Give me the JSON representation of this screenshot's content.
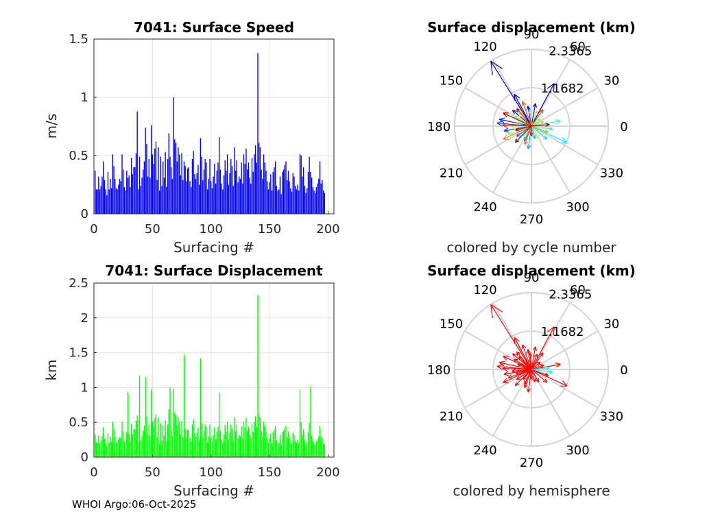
{
  "footer": "WHOI Argo:06-Oct-2025",
  "chart_data": [
    {
      "type": "bar",
      "title": "7041: Surface Speed",
      "xlabel": "Surfacing #",
      "ylabel": "m/s",
      "xlim": [
        0,
        205
      ],
      "ylim": [
        0,
        1.5
      ],
      "xticks": [
        "0",
        "50",
        "100",
        "150",
        "200"
      ],
      "yticks": [
        "0",
        "0.5",
        "1",
        "1.5"
      ],
      "color": "#0000ff",
      "values": [
        0.37,
        0.21,
        0.21,
        0.32,
        0.21,
        0.24,
        0.32,
        0.45,
        0.29,
        0.21,
        0.16,
        0.36,
        0.21,
        0.3,
        0.22,
        0.51,
        0.41,
        0.3,
        0.22,
        0.21,
        0.25,
        0.3,
        0.28,
        0.51,
        0.38,
        0.23,
        0.2,
        0.37,
        0.31,
        0.33,
        0.23,
        0.48,
        0.34,
        0.4,
        0.4,
        0.52,
        0.88,
        0.21,
        0.49,
        0.24,
        0.31,
        0.38,
        0.45,
        0.74,
        0.6,
        0.32,
        0.47,
        0.31,
        0.76,
        0.51,
        0.43,
        0.56,
        0.62,
        0.29,
        0.57,
        0.2,
        0.49,
        0.24,
        0.45,
        0.31,
        0.53,
        0.23,
        0.47,
        0.69,
        0.49,
        0.4,
        0.3,
        1.0,
        0.64,
        0.61,
        0.45,
        0.57,
        0.51,
        0.33,
        0.52,
        0.29,
        0.45,
        0.41,
        0.28,
        0.39,
        0.4,
        0.28,
        0.23,
        0.47,
        0.54,
        0.34,
        0.3,
        0.35,
        0.42,
        0.25,
        0.65,
        0.49,
        0.29,
        0.38,
        0.47,
        0.44,
        0.21,
        0.3,
        0.47,
        0.28,
        0.22,
        0.32,
        0.43,
        0.26,
        0.37,
        0.44,
        0.66,
        0.38,
        0.26,
        0.21,
        0.33,
        0.46,
        0.37,
        0.51,
        0.25,
        0.35,
        0.47,
        0.41,
        0.24,
        0.57,
        0.37,
        0.46,
        0.27,
        0.32,
        0.3,
        0.44,
        0.26,
        0.51,
        0.43,
        0.56,
        0.38,
        0.44,
        0.31,
        0.26,
        0.48,
        0.36,
        0.51,
        0.59,
        0.44,
        1.38,
        0.61,
        0.57,
        0.38,
        0.3,
        0.51,
        0.44,
        0.37,
        0.28,
        0.21,
        0.27,
        0.34,
        0.2,
        0.36,
        0.4,
        0.45,
        0.24,
        0.2,
        0.21,
        0.32,
        0.17,
        0.36,
        0.38,
        0.42,
        0.45,
        0.29,
        0.37,
        0.28,
        0.22,
        0.19,
        0.35,
        0.32,
        0.24,
        0.21,
        0.25,
        0.2,
        0.51,
        0.5,
        0.32,
        0.4,
        0.24,
        0.18,
        0.22,
        0.36,
        0.49,
        0.36,
        0.31,
        0.23,
        0.2,
        0.18,
        0.23,
        0.26,
        0.3,
        0.45,
        0.26,
        0.29,
        0.2,
        0.18
      ]
    },
    {
      "type": "bar",
      "title": "7041: Surface Displacement",
      "xlabel": "Surfacing #",
      "ylabel": "km",
      "xlim": [
        0,
        205
      ],
      "ylim": [
        0,
        2.5
      ],
      "xticks": [
        "0",
        "50",
        "100",
        "150",
        "200"
      ],
      "yticks": [
        "0",
        "0.5",
        "1",
        "1.5",
        "2",
        "2.5"
      ],
      "color": "#00ff00",
      "values": [
        0.33,
        0.21,
        0.21,
        0.31,
        0.2,
        0.24,
        0.3,
        0.43,
        0.27,
        0.2,
        0.16,
        0.34,
        0.21,
        0.29,
        0.22,
        0.5,
        0.4,
        0.29,
        0.22,
        0.21,
        0.25,
        0.29,
        0.28,
        0.51,
        0.37,
        0.23,
        0.2,
        0.36,
        0.93,
        0.33,
        0.23,
        0.48,
        0.33,
        0.4,
        0.4,
        0.52,
        0.6,
        0.21,
        1.17,
        0.24,
        0.3,
        0.38,
        0.45,
        1.15,
        0.59,
        0.32,
        0.47,
        0.31,
        0.97,
        0.51,
        0.43,
        0.56,
        0.62,
        0.29,
        0.57,
        0.2,
        0.49,
        0.24,
        0.45,
        0.31,
        0.53,
        0.23,
        0.47,
        0.69,
        1.0,
        0.4,
        0.3,
        0.98,
        0.64,
        0.61,
        0.45,
        0.57,
        0.51,
        0.33,
        0.52,
        0.29,
        1.47,
        0.41,
        0.28,
        0.39,
        0.4,
        0.28,
        0.23,
        0.47,
        0.54,
        0.34,
        0.3,
        0.35,
        0.42,
        0.25,
        1.42,
        0.49,
        0.29,
        0.38,
        0.47,
        0.44,
        0.21,
        0.3,
        0.47,
        0.28,
        0.22,
        0.32,
        0.43,
        0.26,
        0.37,
        0.44,
        0.93,
        0.38,
        0.26,
        0.21,
        0.33,
        0.46,
        0.37,
        0.51,
        0.25,
        0.35,
        0.47,
        0.41,
        0.24,
        0.57,
        0.37,
        0.46,
        0.27,
        0.32,
        0.3,
        0.44,
        0.26,
        0.51,
        0.43,
        0.56,
        0.38,
        0.44,
        0.31,
        0.26,
        0.48,
        0.36,
        0.51,
        0.59,
        0.44,
        2.33,
        0.61,
        0.57,
        0.38,
        0.3,
        0.51,
        0.44,
        0.37,
        0.28,
        0.21,
        0.27,
        0.34,
        0.2,
        0.36,
        0.4,
        0.45,
        0.24,
        0.2,
        0.21,
        0.32,
        0.17,
        0.36,
        0.38,
        0.42,
        0.45,
        0.29,
        0.37,
        0.28,
        0.22,
        0.19,
        0.35,
        0.32,
        0.24,
        0.21,
        0.25,
        0.2,
        0.97,
        0.5,
        0.32,
        0.4,
        0.24,
        0.18,
        0.22,
        0.36,
        0.49,
        1.01,
        0.31,
        0.23,
        0.2,
        0.18,
        0.23,
        0.26,
        0.3,
        0.45,
        0.26,
        0.29,
        0.2,
        0.18
      ]
    },
    {
      "type": "compass",
      "title": "Surface displacement (km)",
      "caption": "colored by cycle number",
      "rmax": 2.3365,
      "ring_labels": [
        "1.1682",
        "2.3365"
      ],
      "angle_labels": [
        "0",
        "30",
        "60",
        "90",
        "120",
        "150",
        "180",
        "210",
        "240",
        "270",
        "300",
        "330"
      ],
      "colormap": "jet",
      "arrows": [
        {
          "angle": 122,
          "r": 2.33
        },
        {
          "angle": 62,
          "r": 1.47
        },
        {
          "angle": 118,
          "r": 1.1
        },
        {
          "angle": 100,
          "r": 0.62
        },
        {
          "angle": 80,
          "r": 0.7
        },
        {
          "angle": 140,
          "r": 0.75
        },
        {
          "angle": 168,
          "r": 1.0
        },
        {
          "angle": 190,
          "r": 0.85
        },
        {
          "angle": 175,
          "r": 1.05
        },
        {
          "angle": 215,
          "r": 0.55
        },
        {
          "angle": 245,
          "r": 0.5
        },
        {
          "angle": 262,
          "r": 0.7
        },
        {
          "angle": 285,
          "r": 0.4
        },
        {
          "angle": 320,
          "r": 0.62
        },
        {
          "angle": 335,
          "r": 1.2
        },
        {
          "angle": 352,
          "r": 0.65
        },
        {
          "angle": 10,
          "r": 0.9
        },
        {
          "angle": 40,
          "r": 0.35
        },
        {
          "angle": 150,
          "r": 0.62
        },
        {
          "angle": 95,
          "r": 0.5
        },
        {
          "angle": 200,
          "r": 0.75
        },
        {
          "angle": 230,
          "r": 0.4
        },
        {
          "angle": 300,
          "r": 0.45
        },
        {
          "angle": 185,
          "r": 0.6
        },
        {
          "angle": 135,
          "r": 0.55
        },
        {
          "angle": 160,
          "r": 0.45
        },
        {
          "angle": 70,
          "r": 0.5
        },
        {
          "angle": 20,
          "r": 0.4
        },
        {
          "angle": 340,
          "r": 0.55
        },
        {
          "angle": 205,
          "r": 0.95
        },
        {
          "angle": 250,
          "r": 0.6
        },
        {
          "angle": 110,
          "r": 0.8
        },
        {
          "angle": 55,
          "r": 0.62
        },
        {
          "angle": 178,
          "r": 0.88
        },
        {
          "angle": 270,
          "r": 0.3
        },
        {
          "angle": 130,
          "r": 0.7
        },
        {
          "angle": 195,
          "r": 0.5
        },
        {
          "angle": 155,
          "r": 0.95
        },
        {
          "angle": 5,
          "r": 0.55
        },
        {
          "angle": 225,
          "r": 0.7
        }
      ]
    },
    {
      "type": "compass",
      "title": "Surface displacement (km)",
      "caption": "colored by hemisphere",
      "rmax": 2.3365,
      "ring_labels": [
        "1.1682",
        "2.3365"
      ],
      "angle_labels": [
        "0",
        "30",
        "60",
        "90",
        "120",
        "150",
        "180",
        "210",
        "240",
        "270",
        "300",
        "330"
      ],
      "arrow_colors": {
        "north": "#ff0000",
        "south": "#00ffff"
      },
      "arrows": [
        {
          "angle": 122,
          "r": 2.33
        },
        {
          "angle": 62,
          "r": 1.47
        },
        {
          "angle": 118,
          "r": 1.1
        },
        {
          "angle": 100,
          "r": 0.62
        },
        {
          "angle": 80,
          "r": 0.7
        },
        {
          "angle": 140,
          "r": 0.75
        },
        {
          "angle": 168,
          "r": 1.0
        },
        {
          "angle": 190,
          "r": 0.85
        },
        {
          "angle": 175,
          "r": 1.05
        },
        {
          "angle": 215,
          "r": 0.55
        },
        {
          "angle": 245,
          "r": 0.5
        },
        {
          "angle": 262,
          "r": 0.7
        },
        {
          "angle": 285,
          "r": 0.4
        },
        {
          "angle": 320,
          "r": 0.62
        },
        {
          "angle": 335,
          "r": 1.2
        },
        {
          "angle": 352,
          "r": 0.65
        },
        {
          "angle": 10,
          "r": 0.9
        },
        {
          "angle": 40,
          "r": 0.35
        },
        {
          "angle": 150,
          "r": 0.62
        },
        {
          "angle": 95,
          "r": 0.5
        },
        {
          "angle": 200,
          "r": 0.75
        },
        {
          "angle": 230,
          "r": 0.4
        },
        {
          "angle": 300,
          "r": 0.45
        },
        {
          "angle": 185,
          "r": 0.6
        },
        {
          "angle": 135,
          "r": 0.55
        },
        {
          "angle": 160,
          "r": 0.45
        },
        {
          "angle": 70,
          "r": 0.5
        },
        {
          "angle": 20,
          "r": 0.4
        },
        {
          "angle": 340,
          "r": 0.55
        },
        {
          "angle": 205,
          "r": 0.95
        },
        {
          "angle": 250,
          "r": 0.6
        },
        {
          "angle": 110,
          "r": 0.8
        },
        {
          "angle": 55,
          "r": 0.62
        },
        {
          "angle": 178,
          "r": 0.88
        },
        {
          "angle": 270,
          "r": 0.3
        },
        {
          "angle": 130,
          "r": 0.7
        },
        {
          "angle": 195,
          "r": 0.5
        },
        {
          "angle": 155,
          "r": 0.95
        },
        {
          "angle": 5,
          "r": 0.55
        },
        {
          "angle": 225,
          "r": 0.7
        }
      ]
    }
  ]
}
